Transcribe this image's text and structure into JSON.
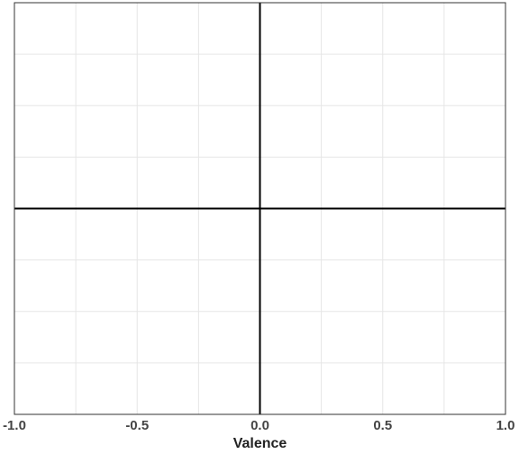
{
  "chart_data": {
    "type": "scatter",
    "title": "",
    "xlabel": "Valence",
    "ylabel": "",
    "xlim": [
      -1.0,
      1.0
    ],
    "ylim": [
      -1.0,
      1.0
    ],
    "x_ticks": [
      -1.0,
      -0.5,
      0.0,
      0.5,
      1.0
    ],
    "x_tick_labels": [
      "-1.0",
      "-0.5",
      "0.0",
      "0.5",
      "1.0"
    ],
    "x_minor_grid": [
      -0.75,
      -0.25,
      0.25,
      0.75
    ],
    "y_grid": [
      -0.75,
      -0.5,
      -0.25,
      0.25,
      0.5,
      0.75
    ],
    "grid": true,
    "quadrant_axes": true,
    "legend": "none",
    "series": [],
    "colors": {
      "grid": "#e6e6e6",
      "frame": "#333333",
      "axes": "#000000",
      "background": "#ffffff"
    }
  }
}
